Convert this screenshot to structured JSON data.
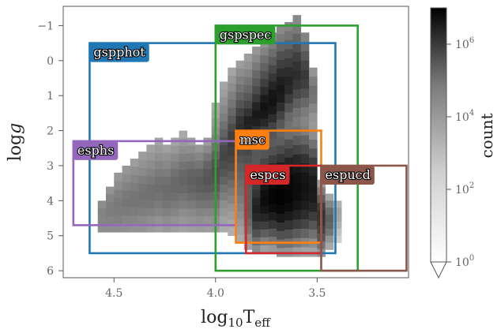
{
  "chart_data": {
    "type": "heatmap",
    "xlabel": "log10Teff",
    "ylabel": "log g",
    "xlim": [
      4.75,
      3.05
    ],
    "ylim": [
      6.2,
      -1.55
    ],
    "x_ticks": [
      {
        "value": 4.5,
        "label": "4.5"
      },
      {
        "value": 4.0,
        "label": "4.0"
      },
      {
        "value": 3.5,
        "label": "3.5"
      }
    ],
    "y_ticks": [
      {
        "value": -1,
        "label": "−1"
      },
      {
        "value": 0,
        "label": "0"
      },
      {
        "value": 1,
        "label": "1"
      },
      {
        "value": 2,
        "label": "2"
      },
      {
        "value": 3,
        "label": "3"
      },
      {
        "value": 4,
        "label": "4"
      },
      {
        "value": 5,
        "label": "5"
      },
      {
        "value": 6,
        "label": "6"
      }
    ],
    "colorbar": {
      "label": "count",
      "scale": "log",
      "range": [
        1,
        10000000
      ],
      "ticks": [
        {
          "value": 1,
          "label": "10^0"
        },
        {
          "value": 100,
          "label": "10^2"
        },
        {
          "value": 10000,
          "label": "10^4"
        },
        {
          "value": 1000000,
          "label": "10^6"
        }
      ]
    },
    "regions": [
      {
        "name": "gspphot",
        "color": "#1f77b4",
        "teff": [
          4.62,
          3.41
        ],
        "logg": [
          -0.5,
          5.5
        ],
        "label_side": "left"
      },
      {
        "name": "gspspec",
        "color": "#2ca02c",
        "teff": [
          4.0,
          3.3
        ],
        "logg": [
          -1.0,
          6.0
        ],
        "label_side": "left"
      },
      {
        "name": "esphs",
        "color": "#9467bd",
        "teff": [
          4.7,
          3.9
        ],
        "logg": [
          2.3,
          4.7
        ],
        "label_side": "left"
      },
      {
        "name": "msc",
        "color": "#ff7f0e",
        "teff": [
          3.9,
          3.48
        ],
        "logg": [
          2.0,
          5.2
        ],
        "label_side": "left"
      },
      {
        "name": "espcs",
        "color": "#d62728",
        "teff": [
          3.85,
          3.48
        ],
        "logg": [
          3.0,
          5.5
        ],
        "label_side": "left"
      },
      {
        "name": "espucd",
        "color": "#8c564b",
        "teff": [
          3.48,
          3.06
        ],
        "logg": [
          3.0,
          6.0
        ],
        "label_side": "left"
      }
    ],
    "density_columns": [
      {
        "teff": [
          4.58,
          4.54
        ],
        "logg": [
          4.0,
          4.9
        ],
        "counts": [
          300,
          600,
          500,
          300
        ]
      },
      {
        "teff": [
          4.54,
          4.5
        ],
        "logg": [
          3.6,
          4.9
        ],
        "counts": [
          200,
          500,
          800,
          900,
          600,
          300
        ]
      },
      {
        "teff": [
          4.5,
          4.46
        ],
        "logg": [
          3.2,
          4.9
        ],
        "counts": [
          150,
          300,
          700,
          1200,
          1000,
          700,
          300
        ]
      },
      {
        "teff": [
          4.46,
          4.42
        ],
        "logg": [
          3.0,
          4.9
        ],
        "counts": [
          150,
          300,
          600,
          1200,
          1500,
          1000,
          500,
          250
        ]
      },
      {
        "teff": [
          4.42,
          4.38
        ],
        "logg": [
          2.8,
          4.9
        ],
        "counts": [
          100,
          250,
          500,
          900,
          1500,
          1400,
          900,
          500,
          200
        ]
      },
      {
        "teff": [
          4.38,
          4.34
        ],
        "logg": [
          2.6,
          4.9
        ],
        "counts": [
          100,
          200,
          400,
          800,
          1500,
          2000,
          1400,
          800,
          400,
          200
        ]
      },
      {
        "teff": [
          4.34,
          4.3
        ],
        "logg": [
          2.4,
          4.9
        ],
        "counts": [
          80,
          150,
          300,
          600,
          1200,
          2200,
          2000,
          1300,
          700,
          300,
          150
        ]
      },
      {
        "teff": [
          4.3,
          4.26
        ],
        "logg": [
          2.2,
          4.9
        ],
        "counts": [
          60,
          120,
          250,
          500,
          1000,
          2000,
          2500,
          1800,
          1000,
          500,
          200,
          100
        ]
      },
      {
        "teff": [
          4.26,
          4.22
        ],
        "logg": [
          2.4,
          4.9
        ],
        "counts": [
          80,
          200,
          400,
          900,
          2000,
          3000,
          2600,
          1500,
          700,
          300,
          150
        ]
      },
      {
        "teff": [
          4.22,
          4.18
        ],
        "logg": [
          2.2,
          4.9
        ],
        "counts": [
          60,
          150,
          350,
          800,
          2000,
          3500,
          3500,
          2200,
          1100,
          500,
          200,
          100
        ]
      },
      {
        "teff": [
          4.18,
          4.14
        ],
        "logg": [
          2.0,
          4.9
        ],
        "counts": [
          50,
          120,
          300,
          700,
          1800,
          4000,
          5000,
          3500,
          1800,
          800,
          300,
          150,
          80
        ]
      },
      {
        "teff": [
          4.14,
          4.1
        ],
        "logg": [
          2.2,
          4.9
        ],
        "counts": [
          80,
          250,
          700,
          2000,
          5000,
          7000,
          5000,
          2500,
          1000,
          400,
          200,
          100
        ]
      },
      {
        "teff": [
          4.1,
          4.06
        ],
        "logg": [
          2.4,
          4.9
        ],
        "counts": [
          150,
          500,
          1500,
          5000,
          9000,
          8000,
          4000,
          1500,
          600,
          250,
          120
        ]
      },
      {
        "teff": [
          4.06,
          4.02
        ],
        "logg": [
          2.2,
          4.9
        ],
        "counts": [
          100,
          400,
          1500,
          5000,
          12000,
          15000,
          9000,
          4000,
          1500,
          500,
          200,
          100
        ]
      },
      {
        "teff": [
          4.02,
          3.98
        ],
        "logg": [
          1.2,
          4.9
        ],
        "counts": [
          50,
          80,
          150,
          300,
          700,
          2000,
          6000,
          15000,
          25000,
          20000,
          10000,
          4000,
          1500,
          600,
          250,
          120
        ]
      },
      {
        "teff": [
          3.98,
          3.94
        ],
        "logg": [
          0.6,
          4.9
        ],
        "counts": [
          60,
          100,
          200,
          400,
          800,
          2000,
          5000,
          15000,
          40000,
          50000,
          30000,
          15000,
          6000,
          2000,
          800,
          300,
          150,
          80,
          40
        ]
      },
      {
        "teff": [
          3.94,
          3.9
        ],
        "logg": [
          0.2,
          5.0
        ],
        "counts": [
          60,
          150,
          300,
          700,
          1500,
          4000,
          10000,
          30000,
          80000,
          100000,
          70000,
          40000,
          20000,
          8000,
          3000,
          1200,
          500,
          200,
          100,
          50,
          30
        ]
      },
      {
        "teff": [
          3.9,
          3.86
        ],
        "logg": [
          0.0,
          5.2
        ],
        "counts": [
          100,
          300,
          700,
          1800,
          5000,
          15000,
          60000,
          200000,
          300000,
          150000,
          70000,
          30000,
          15000,
          8000,
          5000,
          3000,
          2000,
          1000,
          600,
          300,
          150,
          80,
          40
        ]
      },
      {
        "teff": [
          3.86,
          3.82
        ],
        "logg": [
          -0.2,
          5.4
        ],
        "counts": [
          100,
          200,
          500,
          1500,
          4000,
          12000,
          40000,
          200000,
          800000,
          600000,
          200000,
          80000,
          40000,
          20000,
          15000,
          12000,
          10000,
          8000,
          8000,
          9000,
          8000,
          4000,
          1500,
          400,
          100
        ]
      },
      {
        "teff": [
          3.82,
          3.78
        ],
        "logg": [
          -0.4,
          5.5
        ],
        "counts": [
          150,
          400,
          1200,
          3500,
          10000,
          30000,
          120000,
          600000,
          1500000,
          900000,
          250000,
          60000,
          20000,
          12000,
          12000,
          20000,
          40000,
          80000,
          200000,
          500000,
          800000,
          400000,
          100000,
          20000,
          3000,
          400
        ]
      },
      {
        "teff": [
          3.78,
          3.74
        ],
        "logg": [
          -0.6,
          5.5
        ],
        "counts": [
          200,
          600,
          2000,
          6000,
          20000,
          80000,
          300000,
          1200000,
          2500000,
          1500000,
          400000,
          80000,
          20000,
          10000,
          15000,
          40000,
          150000,
          500000,
          1500000,
          3000000,
          4000000,
          2000000,
          500000,
          80000,
          8000,
          800,
          100
        ]
      },
      {
        "teff": [
          3.74,
          3.7
        ],
        "logg": [
          -0.8,
          5.5
        ],
        "counts": [
          300,
          800,
          3000,
          10000,
          40000,
          150000,
          600000,
          1800000,
          2500000,
          1200000,
          300000,
          60000,
          15000,
          10000,
          20000,
          80000,
          400000,
          1500000,
          4000000,
          6000000,
          7000000,
          4000000,
          1000000,
          150000,
          15000,
          1500,
          150
        ]
      },
      {
        "teff": [
          3.7,
          3.66
        ],
        "logg": [
          -1.0,
          5.6
        ],
        "counts": [
          400,
          1200,
          5000,
          20000,
          80000,
          300000,
          900000,
          1500000,
          1000000,
          300000,
          60000,
          12000,
          5000,
          8000,
          30000,
          150000,
          800000,
          3000000,
          6000000,
          8000000,
          8000000,
          5000000,
          1500000,
          200000,
          20000,
          2000,
          200
        ]
      },
      {
        "teff": [
          3.66,
          3.62
        ],
        "logg": [
          -1.1,
          5.6
        ],
        "counts": [
          500,
          1500,
          6000,
          25000,
          100000,
          300000,
          600000,
          400000,
          100000,
          20000,
          4000,
          2000,
          3000,
          20000,
          100000,
          600000,
          2500000,
          5000000,
          6000000,
          6000000,
          4000000,
          1200000,
          200000,
          20000,
          2000,
          200
        ]
      },
      {
        "teff": [
          3.62,
          3.58
        ],
        "logg": [
          -1.3,
          5.6
        ],
        "counts": [
          400,
          1200,
          5000,
          20000,
          80000,
          200000,
          300000,
          150000,
          40000,
          8000,
          2000,
          1000,
          2000,
          10000,
          60000,
          400000,
          1500000,
          3000000,
          4000000,
          3500000,
          2000000,
          600000,
          100000,
          10000,
          1000,
          100
        ]
      },
      {
        "teff": [
          3.58,
          3.54
        ],
        "logg": [
          -0.8,
          5.6
        ],
        "counts": [
          600,
          3000,
          12000,
          50000,
          120000,
          80000,
          20000,
          4000,
          1000,
          500,
          800,
          5000,
          30000,
          200000,
          800000,
          2000000,
          2500000,
          2000000,
          1000000,
          300000,
          50000,
          5000,
          500,
          80
        ]
      },
      {
        "teff": [
          3.54,
          3.5
        ],
        "logg": [
          0.2,
          5.6
        ],
        "counts": [
          200,
          800,
          2000,
          1500,
          500,
          200,
          150,
          300,
          2000,
          15000,
          100000,
          500000,
          1200000,
          1500000,
          1200000,
          500000,
          100000,
          15000,
          2000,
          300,
          80
        ]
      },
      {
        "teff": [
          3.5,
          3.46
        ],
        "logg": [
          3.4,
          5.6
        ],
        "counts": [
          100,
          800,
          8000,
          80000,
          200000,
          150000,
          60000,
          15000,
          2000,
          200
        ]
      },
      {
        "teff": [
          3.46,
          3.42
        ],
        "logg": [
          3.8,
          5.4
        ],
        "counts": [
          60,
          500,
          3000,
          8000,
          5000,
          1500,
          200,
          50
        ]
      },
      {
        "teff": [
          3.42,
          3.38
        ],
        "logg": [
          4.0,
          5.2
        ],
        "counts": [
          30,
          80,
          60,
          30,
          10,
          5
        ]
      }
    ]
  }
}
